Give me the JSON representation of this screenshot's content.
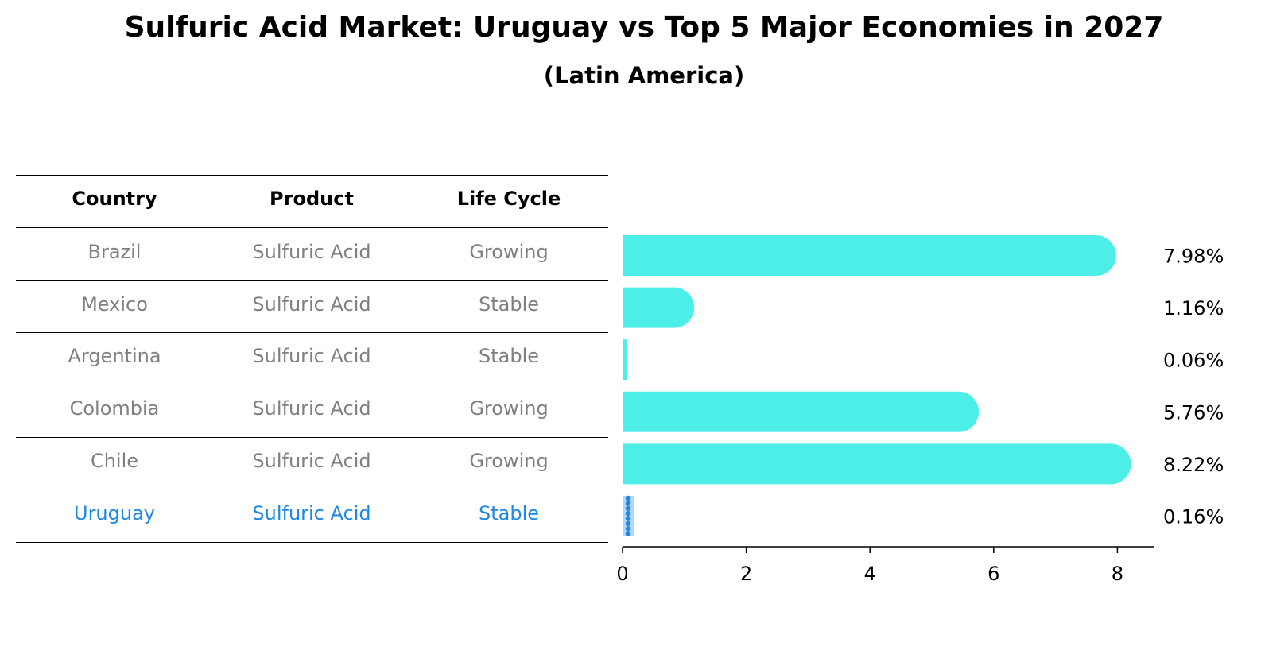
{
  "title": "Sulfuric Acid Market: Uruguay vs Top 5 Major Economies in 2027",
  "subtitle": "(Latin America)",
  "table": {
    "headers": [
      "Country",
      "Product",
      "Life Cycle"
    ],
    "rows": [
      {
        "country": "Brazil",
        "product": "Sulfuric Acid",
        "life_cycle": "Growing",
        "highlight": false
      },
      {
        "country": "Mexico",
        "product": "Sulfuric Acid",
        "life_cycle": "Stable",
        "highlight": false
      },
      {
        "country": "Argentina",
        "product": "Sulfuric Acid",
        "life_cycle": "Stable",
        "highlight": false
      },
      {
        "country": "Colombia",
        "product": "Sulfuric Acid",
        "life_cycle": "Growing",
        "highlight": false
      },
      {
        "country": "Chile",
        "product": "Sulfuric Acid",
        "life_cycle": "Growing",
        "highlight": false
      },
      {
        "country": "Uruguay",
        "product": "Sulfuric Acid",
        "life_cycle": "Stable",
        "highlight": true
      }
    ]
  },
  "chart_data": {
    "type": "bar",
    "orientation": "horizontal",
    "categories": [
      "Brazil",
      "Mexico",
      "Argentina",
      "Colombia",
      "Chile",
      "Uruguay"
    ],
    "values": [
      7.98,
      1.16,
      0.06,
      5.76,
      8.22,
      0.16
    ],
    "value_labels": [
      "7.98%",
      "1.16%",
      "0.06%",
      "5.76%",
      "8.22%",
      "0.16%"
    ],
    "highlight_category": "Uruguay",
    "xlim": [
      0,
      8.6
    ],
    "xticks": [
      0,
      2,
      4,
      6,
      8
    ],
    "xtick_labels": [
      "0",
      "2",
      "4",
      "6",
      "8"
    ],
    "title": "Sulfuric Acid Market: Uruguay vs Top 5 Major Economies in 2027",
    "subtitle": "(Latin America)",
    "xlabel": "",
    "ylabel": ""
  },
  "colors": {
    "bar": "#4eeee8",
    "highlight": "#1e88e5",
    "muted_text": "#808080",
    "rule": "#000000"
  }
}
